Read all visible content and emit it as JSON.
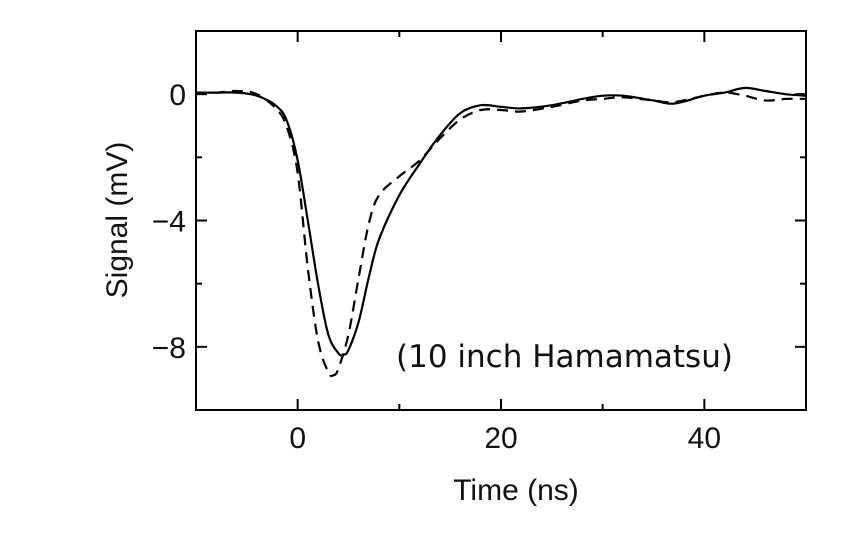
{
  "chart_data": {
    "type": "line",
    "title": "",
    "xlabel": "Time (ns)",
    "ylabel": "Signal (mV)",
    "xlim": [
      -10,
      50
    ],
    "ylim": [
      -10,
      2
    ],
    "xticks": [
      {
        "value": 0,
        "label": "0"
      },
      {
        "value": 20,
        "label": "20"
      },
      {
        "value": 40,
        "label": "40"
      }
    ],
    "yticks": [
      {
        "value": 0,
        "label": "0"
      },
      {
        "value": -4,
        "label": "−4"
      },
      {
        "value": -8,
        "label": "−8"
      }
    ],
    "minor_xticks": [
      -10,
      10,
      30,
      50
    ],
    "minor_yticks": [
      -10,
      -6,
      -2,
      2
    ],
    "grid": false,
    "legend": "none",
    "annotation": "(10 inch Hamamatsu)",
    "series": [
      {
        "style": "solid",
        "color": "#000000",
        "x": [
          -10,
          -8,
          -6,
          -4,
          -2,
          -1,
          0,
          1,
          2,
          3,
          4,
          4.5,
          5,
          6,
          7,
          8,
          10,
          12,
          14,
          16,
          18,
          20,
          22,
          25,
          28,
          30,
          32,
          35,
          37,
          40,
          42,
          44,
          46,
          48,
          50
        ],
        "y": [
          0.05,
          0.05,
          0.05,
          -0.05,
          -0.4,
          -0.9,
          -2.1,
          -4.0,
          -6.0,
          -7.6,
          -8.2,
          -8.25,
          -8.1,
          -7.2,
          -5.8,
          -4.6,
          -3.2,
          -2.2,
          -1.3,
          -0.6,
          -0.35,
          -0.4,
          -0.45,
          -0.35,
          -0.15,
          -0.05,
          -0.05,
          -0.2,
          -0.3,
          -0.05,
          0.05,
          0.2,
          0.1,
          0.0,
          -0.05
        ]
      },
      {
        "style": "dashed",
        "color": "#000000",
        "x": [
          -10,
          -8,
          -6,
          -4,
          -2,
          -1,
          0,
          1,
          2,
          3,
          3.5,
          4,
          5,
          6,
          7,
          8,
          10,
          12,
          14,
          16,
          18,
          20,
          22,
          25,
          28,
          30,
          32,
          35,
          37,
          40,
          42,
          44,
          46,
          48,
          50
        ],
        "y": [
          0.05,
          0.05,
          0.1,
          0.0,
          -0.5,
          -1.1,
          -2.5,
          -5.5,
          -7.8,
          -8.8,
          -8.9,
          -8.7,
          -7.6,
          -5.8,
          -4.1,
          -3.2,
          -2.6,
          -2.1,
          -1.4,
          -0.8,
          -0.5,
          -0.5,
          -0.55,
          -0.4,
          -0.2,
          -0.15,
          -0.1,
          -0.2,
          -0.25,
          -0.05,
          0.05,
          -0.05,
          -0.2,
          -0.15,
          -0.15
        ]
      }
    ]
  }
}
